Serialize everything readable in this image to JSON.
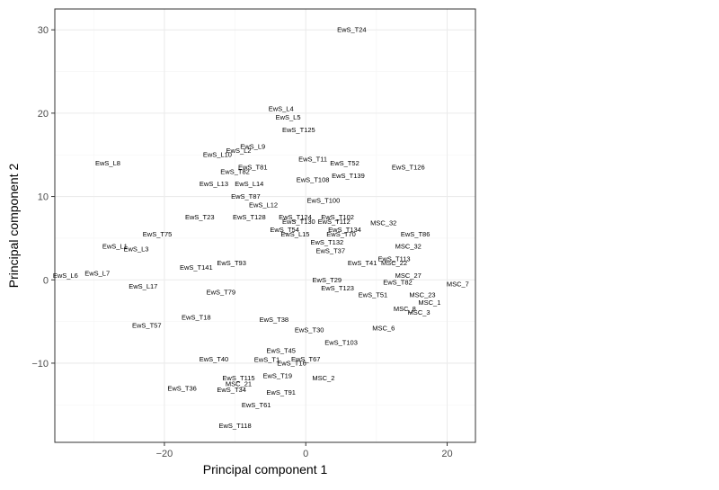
{
  "chart_data": {
    "type": "scatter",
    "xlabel": "Principal component 1",
    "ylabel": "Principal component 2",
    "xlim": [
      -35.5,
      24.0
    ],
    "ylim": [
      -19.5,
      32.5
    ],
    "x_ticks": [
      -20,
      0,
      20
    ],
    "y_ticks": [
      -10,
      0,
      10,
      20,
      30
    ],
    "x_tick_labels": [
      "−20",
      "0",
      "20"
    ],
    "y_tick_labels": [
      "−10",
      "0",
      "10",
      "20",
      "30"
    ],
    "grid": true,
    "colors": {
      "panel_border": "#333333",
      "grid_major": "#ebebeb",
      "grid_minor": "#f5f5f5",
      "label": "#000000",
      "tick": "#4d4d4d"
    },
    "points": [
      {
        "label": "EwS_T24",
        "x": 6.5,
        "y": 30.0
      },
      {
        "label": "EwS_L4",
        "x": -3.5,
        "y": 20.5
      },
      {
        "label": "EwS_L5",
        "x": -2.5,
        "y": 19.5
      },
      {
        "label": "EwS_T125",
        "x": -1.0,
        "y": 18.0
      },
      {
        "label": "EwS_L9",
        "x": -7.5,
        "y": 16.0
      },
      {
        "label": "EwS_L2",
        "x": -9.5,
        "y": 15.5
      },
      {
        "label": "EwS_L10",
        "x": -12.5,
        "y": 15.0
      },
      {
        "label": "EwS_L8",
        "x": -28.0,
        "y": 14.0
      },
      {
        "label": "EwS_T11",
        "x": 1.0,
        "y": 14.5
      },
      {
        "label": "EwS_T52",
        "x": 5.5,
        "y": 14.0
      },
      {
        "label": "EwS_T126",
        "x": 14.5,
        "y": 13.5
      },
      {
        "label": "EwS_T81",
        "x": -7.5,
        "y": 13.5
      },
      {
        "label": "EwS_T82",
        "x": -10.0,
        "y": 13.0
      },
      {
        "label": "EwS_T139",
        "x": 6.0,
        "y": 12.5
      },
      {
        "label": "EwS_T108",
        "x": 1.0,
        "y": 12.0
      },
      {
        "label": "EwS_L13",
        "x": -13.0,
        "y": 11.5
      },
      {
        "label": "EwS_L14",
        "x": -8.0,
        "y": 11.5
      },
      {
        "label": "EwS_T87",
        "x": -8.5,
        "y": 10.0
      },
      {
        "label": "EwS_T100",
        "x": 2.5,
        "y": 9.5
      },
      {
        "label": "EwS_L12",
        "x": -6.0,
        "y": 9.0
      },
      {
        "label": "EwS_T23",
        "x": -15.0,
        "y": 7.5
      },
      {
        "label": "EwS_T128",
        "x": -8.0,
        "y": 7.5
      },
      {
        "label": "EwS_T124",
        "x": -1.5,
        "y": 7.5
      },
      {
        "label": "EwS_T102",
        "x": 4.5,
        "y": 7.5
      },
      {
        "label": "EwS_T130",
        "x": -1.0,
        "y": 7.0
      },
      {
        "label": "EwS_T112",
        "x": 4.0,
        "y": 7.0
      },
      {
        "label": "MSC_32",
        "x": 11.0,
        "y": 6.8
      },
      {
        "label": "EwS_T75",
        "x": -21.0,
        "y": 5.5
      },
      {
        "label": "EwS_T134",
        "x": 5.5,
        "y": 6.0
      },
      {
        "label": "EwS_T54",
        "x": -3.0,
        "y": 6.0
      },
      {
        "label": "EwS_T86",
        "x": 15.5,
        "y": 5.5
      },
      {
        "label": "EwS_L15",
        "x": -1.5,
        "y": 5.5
      },
      {
        "label": "EwS_T70",
        "x": 5.0,
        "y": 5.5
      },
      {
        "label": "EwS_T132",
        "x": 3.0,
        "y": 4.5
      },
      {
        "label": "MSC_32",
        "x": 14.5,
        "y": 4.0
      },
      {
        "label": "EwS_L1",
        "x": -27.0,
        "y": 4.0
      },
      {
        "label": "EwS_L3",
        "x": -24.0,
        "y": 3.7
      },
      {
        "label": "EwS_T37",
        "x": 3.5,
        "y": 3.5
      },
      {
        "label": "EwS_T113",
        "x": 12.5,
        "y": 2.5
      },
      {
        "label": "EwS_T41",
        "x": 8.0,
        "y": 2.0
      },
      {
        "label": "MSC_22",
        "x": 12.5,
        "y": 2.0
      },
      {
        "label": "EwS_T141",
        "x": -15.5,
        "y": 1.5
      },
      {
        "label": "EwS_T93",
        "x": -10.5,
        "y": 2.0
      },
      {
        "label": "EwS_L6",
        "x": -34.0,
        "y": 0.5
      },
      {
        "label": "EwS_L7",
        "x": -29.5,
        "y": 0.8
      },
      {
        "label": "MSC_27",
        "x": 14.5,
        "y": 0.5
      },
      {
        "label": "MSC_7",
        "x": 21.5,
        "y": -0.5
      },
      {
        "label": "EwS_T82",
        "x": 13.0,
        "y": -0.3
      },
      {
        "label": "EwS_T29",
        "x": 3.0,
        "y": 0.0
      },
      {
        "label": "EwS_L17",
        "x": -23.0,
        "y": -0.8
      },
      {
        "label": "EwS_T123",
        "x": 4.5,
        "y": -1.0
      },
      {
        "label": "EwS_T79",
        "x": -12.0,
        "y": -1.5
      },
      {
        "label": "EwS_T51",
        "x": 9.5,
        "y": -1.8
      },
      {
        "label": "MSC_23",
        "x": 16.5,
        "y": -1.8
      },
      {
        "label": "MSC_1",
        "x": 17.5,
        "y": -2.7
      },
      {
        "label": "MSC_8",
        "x": 14.0,
        "y": -3.5
      },
      {
        "label": "MSC_3",
        "x": 16.0,
        "y": -3.9
      },
      {
        "label": "EwS_T18",
        "x": -15.5,
        "y": -4.5
      },
      {
        "label": "EwS_T57",
        "x": -22.5,
        "y": -5.5
      },
      {
        "label": "EwS_T38",
        "x": -4.5,
        "y": -4.8
      },
      {
        "label": "MSC_6",
        "x": 11.0,
        "y": -5.8
      },
      {
        "label": "EwS_T30",
        "x": 0.5,
        "y": -6.0
      },
      {
        "label": "EwS_T103",
        "x": 5.0,
        "y": -7.5
      },
      {
        "label": "EwS_T45",
        "x": -3.5,
        "y": -8.5
      },
      {
        "label": "EwS_T40",
        "x": -13.0,
        "y": -9.5
      },
      {
        "label": "EwS_T1",
        "x": -5.5,
        "y": -9.6
      },
      {
        "label": "EwS_T67",
        "x": 0.0,
        "y": -9.5
      },
      {
        "label": "EwS_T16",
        "x": -2.0,
        "y": -10.0
      },
      {
        "label": "EwS_T19",
        "x": -4.0,
        "y": -11.5
      },
      {
        "label": "EwS_T115",
        "x": -9.5,
        "y": -11.8
      },
      {
        "label": "MSC_2",
        "x": 2.5,
        "y": -11.8
      },
      {
        "label": "MSC_21",
        "x": -9.5,
        "y": -12.5
      },
      {
        "label": "EwS_T36",
        "x": -17.5,
        "y": -13.0
      },
      {
        "label": "EwS_T34",
        "x": -10.5,
        "y": -13.2
      },
      {
        "label": "EwS_T91",
        "x": -3.5,
        "y": -13.5
      },
      {
        "label": "EwS_T61",
        "x": -7.0,
        "y": -15.0
      },
      {
        "label": "EwS_T118",
        "x": -10.0,
        "y": -17.5
      }
    ]
  }
}
